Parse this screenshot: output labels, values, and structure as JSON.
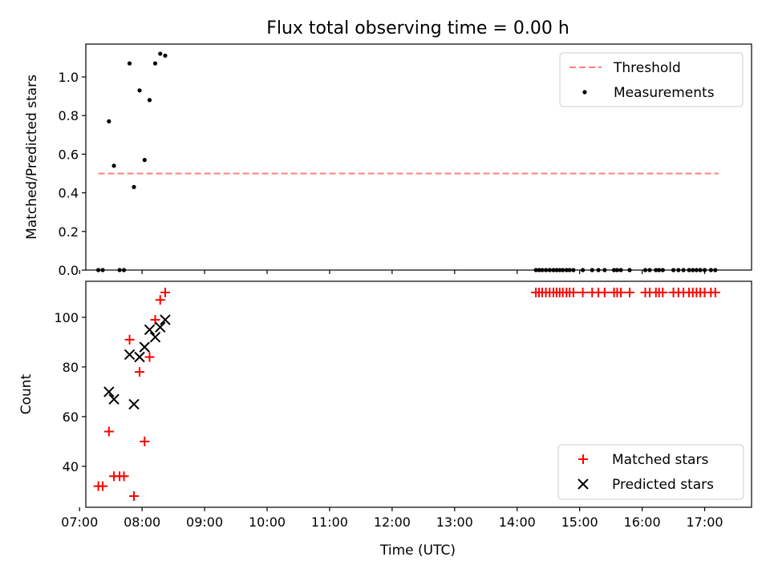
{
  "title": "Flux total observing time = 0.00 h",
  "colors": {
    "threshold": "#ff7f7f",
    "measurement": "#000000",
    "matched": "#ff0000",
    "predicted": "#000000",
    "axis": "#000000"
  },
  "chart_data": [
    {
      "type": "scatter",
      "panel": "top",
      "xlabel": "",
      "ylabel": "Matched/Predicted stars",
      "xlim": [
        7.1,
        17.75
      ],
      "ylim": [
        0,
        1.17
      ],
      "yticks": [
        0.0,
        0.2,
        0.4,
        0.6,
        0.8,
        1.0
      ],
      "ytick_labels": [
        "0.0",
        "0.2",
        "0.4",
        "0.6",
        "0.8",
        "1.0"
      ],
      "legend_position": "upper right",
      "legend": {
        "threshold": "Threshold",
        "measurements": "Measurements"
      },
      "threshold": {
        "x": [
          7.3,
          17.22
        ],
        "y": 0.5
      },
      "series": [
        {
          "name": "Measurements",
          "marker": "dot",
          "x": [
            7.3,
            7.37,
            7.47,
            7.55,
            7.64,
            7.71,
            7.8,
            7.87,
            7.96,
            8.04,
            8.12,
            8.21,
            8.29,
            8.37,
            14.3,
            14.35,
            14.4,
            14.46,
            14.52,
            14.58,
            14.63,
            14.68,
            14.73,
            14.79,
            14.84,
            14.9,
            15.05,
            15.2,
            15.3,
            15.4,
            15.55,
            15.6,
            15.66,
            15.8,
            16.05,
            16.12,
            16.22,
            16.27,
            16.33,
            16.5,
            16.58,
            16.66,
            16.75,
            16.81,
            16.87,
            16.93,
            17.0,
            17.1,
            17.17
          ],
          "y": [
            0,
            0,
            0.77,
            0.54,
            0,
            0,
            1.07,
            0.43,
            0.93,
            0.57,
            0.88,
            1.07,
            1.12,
            1.11,
            0,
            0,
            0,
            0,
            0,
            0,
            0,
            0,
            0,
            0,
            0,
            0,
            0,
            0,
            0,
            0,
            0,
            0,
            0,
            0,
            0,
            0,
            0,
            0,
            0,
            0,
            0,
            0,
            0,
            0,
            0,
            0,
            0,
            0,
            0
          ]
        }
      ]
    },
    {
      "type": "scatter",
      "panel": "bottom",
      "xlabel": "Time (UTC)",
      "ylabel": "Count",
      "xlim": [
        7.1,
        17.75
      ],
      "ylim": [
        23.5,
        114.5
      ],
      "yticks": [
        40,
        60,
        80,
        100
      ],
      "ytick_labels": [
        "40",
        "60",
        "80",
        "100"
      ],
      "xticks": [
        7,
        8,
        9,
        10,
        11,
        12,
        13,
        14,
        15,
        16,
        17
      ],
      "xtick_labels": [
        "07:00",
        "08:00",
        "09:00",
        "10:00",
        "11:00",
        "12:00",
        "13:00",
        "14:00",
        "15:00",
        "16:00",
        "17:00"
      ],
      "legend_position": "lower right",
      "series": [
        {
          "name": "Matched stars",
          "marker": "plus",
          "x": [
            7.3,
            7.37,
            7.47,
            7.55,
            7.64,
            7.71,
            7.8,
            7.87,
            7.96,
            8.04,
            8.12,
            8.21,
            8.29,
            8.37,
            14.3,
            14.35,
            14.4,
            14.46,
            14.52,
            14.58,
            14.63,
            14.68,
            14.73,
            14.79,
            14.84,
            14.9,
            15.05,
            15.2,
            15.3,
            15.4,
            15.55,
            15.6,
            15.66,
            15.8,
            16.05,
            16.12,
            16.22,
            16.27,
            16.33,
            16.5,
            16.58,
            16.66,
            16.75,
            16.81,
            16.87,
            16.93,
            17.0,
            17.1,
            17.17
          ],
          "y": [
            32,
            32,
            54,
            36,
            36,
            36,
            91,
            28,
            78,
            50,
            84,
            99,
            107,
            110,
            110,
            110,
            110,
            110,
            110,
            110,
            110,
            110,
            110,
            110,
            110,
            110,
            110,
            110,
            110,
            110,
            110,
            110,
            110,
            110,
            110,
            110,
            110,
            110,
            110,
            110,
            110,
            110,
            110,
            110,
            110,
            110,
            110,
            110,
            110
          ]
        },
        {
          "name": "Predicted stars",
          "marker": "x",
          "x": [
            7.47,
            7.55,
            7.8,
            7.87,
            7.96,
            8.04,
            8.12,
            8.21,
            8.29,
            8.37
          ],
          "y": [
            70,
            67,
            85,
            65,
            84,
            88,
            95,
            92,
            96,
            99
          ]
        }
      ]
    }
  ]
}
